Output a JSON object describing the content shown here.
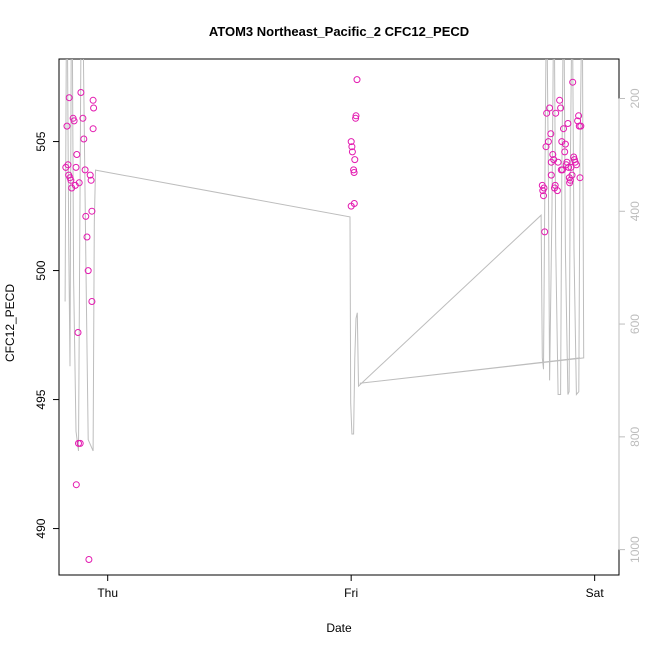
{
  "chart_data": {
    "type": "scatter",
    "title": "ATOM3 Northeast_Pacific_2 CFC12_PECD",
    "xlabel": "Date",
    "ylabel": "CFC12_PECD",
    "x_ticks": [
      "Thu",
      "Fri",
      "Sat"
    ],
    "x_range": [
      -0.2,
      2.1
    ],
    "y_range": [
      488.2,
      508.2
    ],
    "y_ticks": [
      490,
      495,
      500,
      505
    ],
    "y2_range": [
      1045,
      130
    ],
    "y2_ticks": [
      200,
      400,
      600,
      800,
      1000
    ],
    "series": [
      {
        "type": "scatter",
        "color": "#e31ab0",
        "points": [
          [
            -0.172,
            504.0
          ],
          [
            -0.167,
            505.6
          ],
          [
            -0.163,
            504.1
          ],
          [
            -0.16,
            503.7
          ],
          [
            -0.158,
            506.7
          ],
          [
            -0.155,
            503.6
          ],
          [
            -0.151,
            503.5
          ],
          [
            -0.148,
            503.2
          ],
          [
            -0.142,
            505.9
          ],
          [
            -0.138,
            505.8
          ],
          [
            -0.133,
            503.3
          ],
          [
            -0.13,
            504.0
          ],
          [
            -0.127,
            504.5
          ],
          [
            -0.122,
            497.6
          ],
          [
            -0.12,
            493.3
          ],
          [
            -0.117,
            503.4
          ],
          [
            -0.113,
            493.3
          ],
          [
            -0.129,
            491.7
          ],
          [
            -0.098,
            505.1
          ],
          [
            -0.093,
            503.9
          ],
          [
            -0.09,
            502.1
          ],
          [
            -0.11,
            506.9
          ],
          [
            -0.102,
            505.9
          ],
          [
            -0.085,
            501.3
          ],
          [
            -0.08,
            500.0
          ],
          [
            -0.077,
            488.8
          ],
          [
            -0.072,
            503.7
          ],
          [
            -0.068,
            503.5
          ],
          [
            -0.065,
            498.8
          ],
          [
            -0.065,
            502.3
          ],
          [
            -0.06,
            506.6
          ],
          [
            -0.058,
            506.3
          ],
          [
            -0.06,
            505.5
          ],
          [
            1.0,
            505.0
          ],
          [
            1.003,
            504.8
          ],
          [
            1.005,
            504.6
          ],
          [
            1.01,
            503.9
          ],
          [
            1.012,
            503.8
          ],
          [
            1.015,
            504.3
          ],
          [
            1.018,
            505.9
          ],
          [
            1.02,
            506.0
          ],
          [
            1.024,
            507.4
          ],
          [
            1.0,
            502.5
          ],
          [
            1.013,
            502.6
          ],
          [
            1.785,
            503.3
          ],
          [
            1.787,
            503.1
          ],
          [
            1.79,
            502.9
          ],
          [
            1.792,
            503.2
          ],
          [
            1.795,
            501.5
          ],
          [
            1.8,
            504.8
          ],
          [
            1.803,
            506.1
          ],
          [
            1.81,
            505.0
          ],
          [
            1.815,
            506.3
          ],
          [
            1.82,
            505.3
          ],
          [
            1.822,
            504.2
          ],
          [
            1.828,
            504.5
          ],
          [
            1.832,
            504.3
          ],
          [
            1.835,
            503.2
          ],
          [
            1.838,
            503.3
          ],
          [
            1.84,
            506.1
          ],
          [
            1.847,
            503.1
          ],
          [
            1.85,
            504.2
          ],
          [
            1.856,
            506.6
          ],
          [
            1.86,
            506.3
          ],
          [
            1.863,
            503.9
          ],
          [
            1.868,
            503.9
          ],
          [
            1.872,
            505.5
          ],
          [
            1.877,
            504.6
          ],
          [
            1.88,
            504.9
          ],
          [
            1.883,
            504.1
          ],
          [
            1.886,
            504.2
          ],
          [
            1.89,
            505.7
          ],
          [
            1.893,
            504.0
          ],
          [
            1.897,
            503.4
          ],
          [
            1.9,
            503.5
          ],
          [
            1.903,
            504.0
          ],
          [
            1.907,
            503.7
          ],
          [
            1.91,
            507.3
          ],
          [
            1.914,
            504.4
          ],
          [
            1.917,
            504.3
          ],
          [
            1.92,
            504.2
          ],
          [
            1.925,
            504.1
          ],
          [
            1.93,
            505.8
          ],
          [
            1.934,
            506.0
          ],
          [
            1.937,
            505.6
          ],
          [
            1.94,
            503.6
          ],
          [
            1.943,
            505.6
          ],
          [
            1.822,
            503.7
          ],
          [
            1.896,
            503.6
          ],
          [
            1.865,
            505.0
          ]
        ]
      },
      {
        "type": "line",
        "color": "#bdbdbd",
        "axis": "right",
        "points": [
          [
            -0.175,
            560
          ],
          [
            -0.17,
            110
          ],
          [
            -0.165,
            110
          ],
          [
            -0.16,
            450
          ],
          [
            -0.155,
            675
          ],
          [
            -0.15,
            110
          ],
          [
            -0.145,
            110
          ],
          [
            -0.14,
            520
          ],
          [
            -0.13,
            790
          ],
          [
            -0.12,
            825
          ],
          [
            -0.11,
            110
          ],
          [
            -0.1,
            110
          ],
          [
            -0.09,
            480
          ],
          [
            -0.08,
            805
          ],
          [
            -0.06,
            825
          ],
          [
            -0.055,
            420
          ],
          [
            -0.05,
            327
          ],
          [
            0.995,
            410
          ],
          [
            0.998,
            740
          ],
          [
            1.003,
            795
          ],
          [
            1.01,
            795
          ],
          [
            1.015,
            660
          ],
          [
            1.02,
            590
          ],
          [
            1.025,
            580
          ],
          [
            1.03,
            710
          ],
          [
            1.78,
            407
          ],
          [
            1.785,
            660
          ],
          [
            1.79,
            680
          ],
          [
            1.795,
            390
          ],
          [
            1.8,
            110
          ],
          [
            1.805,
            110
          ],
          [
            1.81,
            340
          ],
          [
            1.815,
            700
          ],
          [
            1.825,
            390
          ],
          [
            1.83,
            110
          ],
          [
            1.835,
            110
          ],
          [
            1.84,
            460
          ],
          [
            1.85,
            725
          ],
          [
            1.86,
            725
          ],
          [
            1.865,
            340
          ],
          [
            1.87,
            110
          ],
          [
            1.875,
            110
          ],
          [
            1.88,
            470
          ],
          [
            1.89,
            725
          ],
          [
            1.895,
            720
          ],
          [
            1.9,
            330
          ],
          [
            1.905,
            110
          ],
          [
            1.91,
            110
          ],
          [
            1.915,
            470
          ],
          [
            1.925,
            725
          ],
          [
            1.935,
            720
          ],
          [
            1.94,
            300
          ],
          [
            1.945,
            110
          ],
          [
            1.95,
            110
          ],
          [
            1.955,
            660
          ],
          [
            1.035,
            705
          ],
          [
            1.94,
            660
          ]
        ]
      }
    ]
  }
}
